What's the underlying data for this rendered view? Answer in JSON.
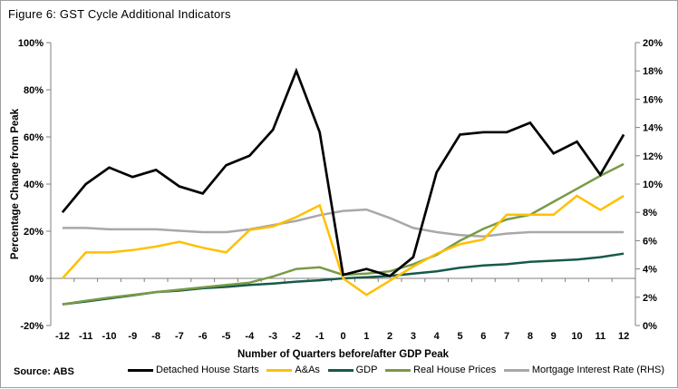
{
  "title": "Figure 6: GST Cycle Additional Indicators",
  "source": "Source: ABS",
  "chart_data": {
    "type": "line",
    "title": "Figure 6: GST Cycle Additional Indicators",
    "xlabel": "Number of Quarters before/after GDP Peak",
    "ylabel_left": "Percentage Change from Peak",
    "x": [
      -12,
      -11,
      -10,
      -9,
      -8,
      -7,
      -6,
      -5,
      -4,
      -3,
      -2,
      -1,
      0,
      1,
      2,
      3,
      4,
      5,
      6,
      7,
      8,
      9,
      10,
      11,
      12
    ],
    "y_left_range": [
      -20,
      100
    ],
    "y_left_ticks": [
      "100%",
      "80%",
      "60%",
      "40%",
      "20%",
      "0%",
      "-20%"
    ],
    "y_right_range": [
      0,
      20
    ],
    "y_right_ticks": [
      "20%",
      "18%",
      "16%",
      "14%",
      "12%",
      "10%",
      "8%",
      "6%",
      "4%",
      "2%",
      "0%"
    ],
    "grid": false,
    "legend_position": "bottom",
    "series": [
      {
        "name": "Detached House Starts",
        "axis": "left",
        "color": "#000000",
        "width": 2.7,
        "values": [
          28,
          40,
          47,
          43,
          46,
          39,
          36,
          48,
          52,
          63,
          88,
          62,
          1.5,
          4,
          1,
          9,
          45,
          61,
          62,
          62,
          66,
          53,
          58,
          44,
          61
        ]
      },
      {
        "name": "A&As",
        "axis": "left",
        "color": "#FFC000",
        "width": 2.5,
        "values": [
          0,
          11,
          11,
          12,
          13.5,
          15.5,
          13,
          11,
          20.5,
          22,
          26,
          31,
          0,
          -7,
          -1,
          5,
          10.5,
          14.5,
          16.5,
          27,
          27,
          27,
          35,
          29,
          35
        ]
      },
      {
        "name": "GDP",
        "axis": "left",
        "color": "#17594A",
        "width": 2.5,
        "values": [
          -11,
          -9.8,
          -8.5,
          -7.2,
          -5.8,
          -5.2,
          -4.2,
          -3.6,
          -2.8,
          -2.2,
          -1.4,
          -0.8,
          0,
          0.5,
          1,
          2,
          3,
          4.5,
          5.5,
          6,
          7,
          7.5,
          8,
          9,
          10.5
        ]
      },
      {
        "name": "Real House Prices",
        "axis": "left",
        "color": "#7A9A47",
        "width": 2.5,
        "values": [
          -11,
          -9.5,
          -8.2,
          -7,
          -5.8,
          -4.8,
          -3.8,
          -2.8,
          -1.8,
          0.8,
          4,
          4.7,
          1.5,
          2,
          3,
          6,
          10,
          16,
          21,
          25,
          27,
          32.5,
          38,
          43.5,
          48.5
        ]
      },
      {
        "name": "Mortgage Interest Rate (RHS)",
        "axis": "right",
        "color": "#A8A8A8",
        "width": 2.5,
        "values": [
          6.9,
          6.9,
          6.8,
          6.8,
          6.8,
          6.7,
          6.6,
          6.6,
          6.8,
          7.1,
          7.4,
          7.8,
          8.1,
          8.2,
          7.6,
          6.9,
          6.6,
          6.4,
          6.3,
          6.5,
          6.6,
          6.6,
          6.6,
          6.6,
          6.6
        ]
      }
    ]
  }
}
